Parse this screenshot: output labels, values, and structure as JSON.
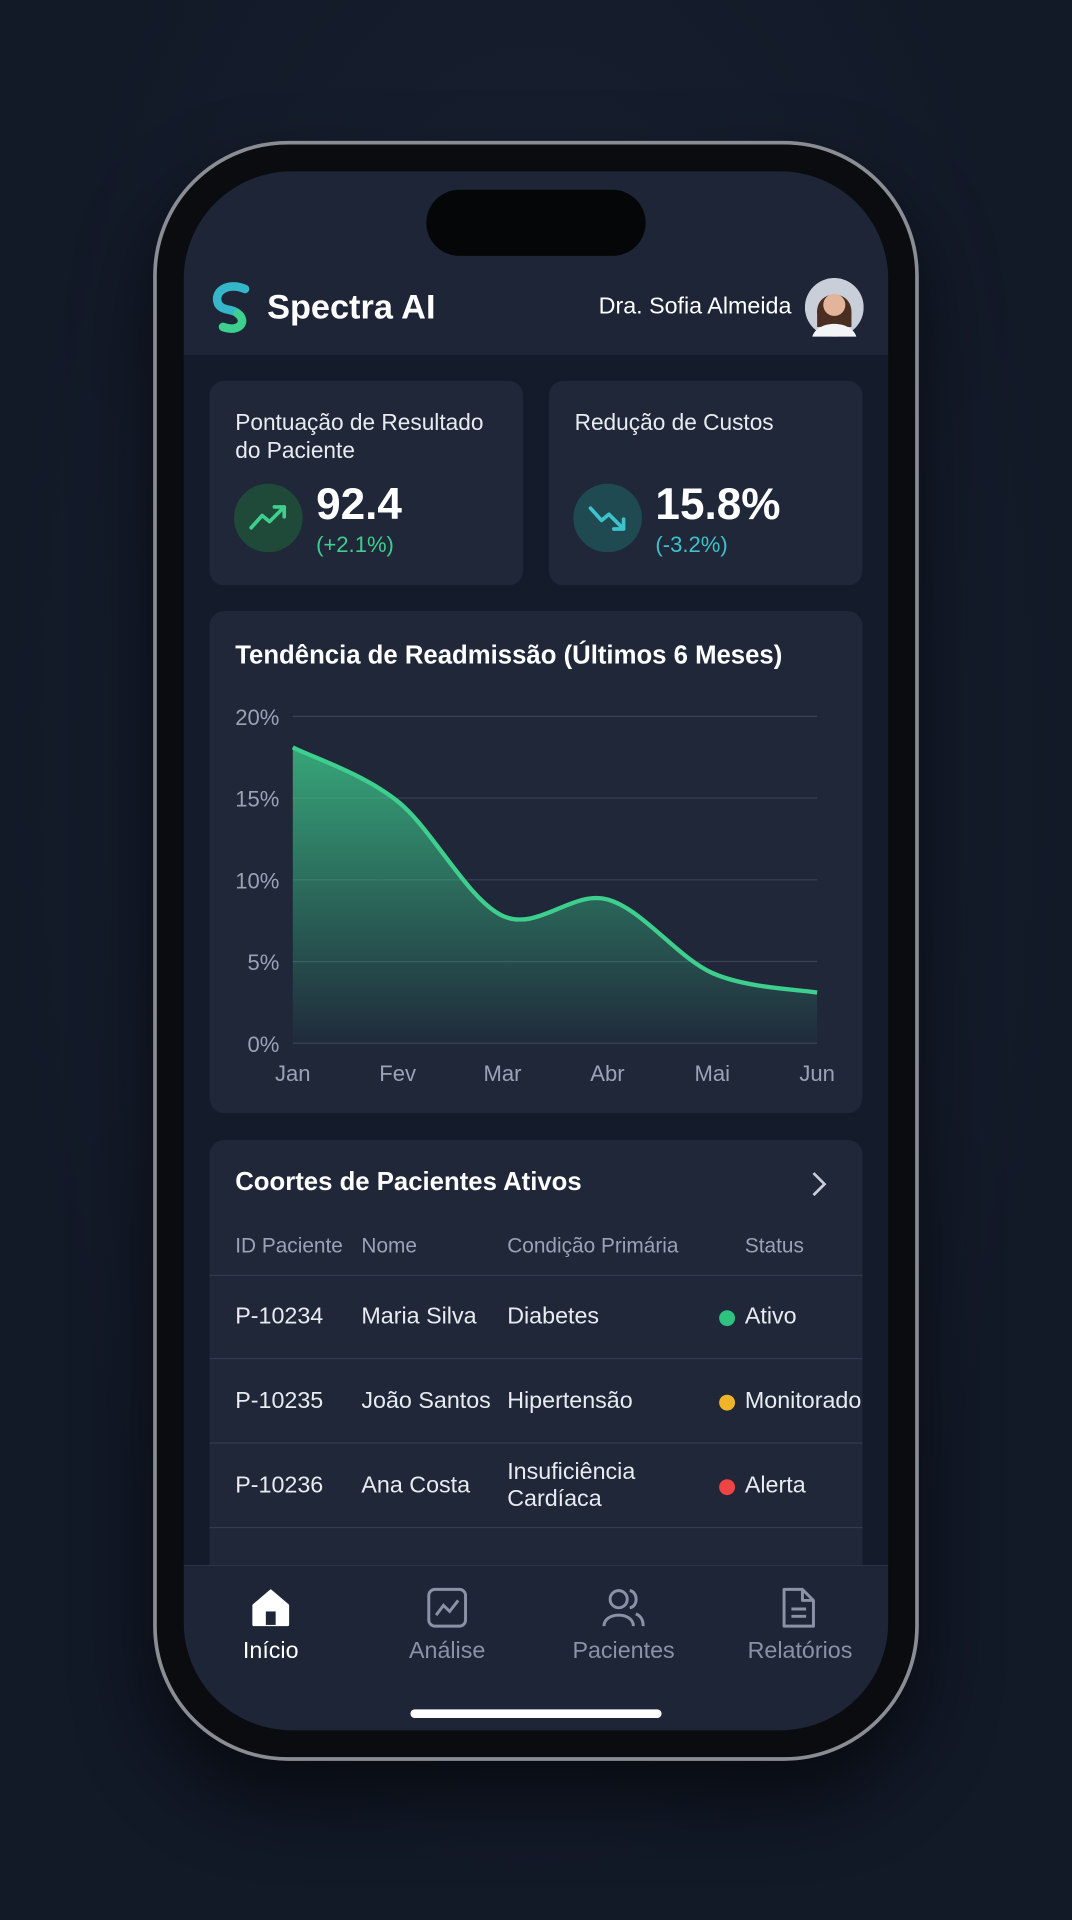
{
  "app_name": "Spectra AI",
  "user_name": "Dra. Sofia Almeida",
  "kpis": [
    {
      "title": "Pontuação de Resultado do Paciente",
      "value": "92.4",
      "change": "(+2.1%)",
      "color": "#3ecf8e"
    },
    {
      "title": "Redução de Custos",
      "value": "15.8%",
      "change": "(-3.2%)",
      "color": "#3cc3cc"
    }
  ],
  "chart_data": {
    "type": "area",
    "title": "Tendência de Readmissão (Últimos 6 Meses)",
    "categories": [
      "Jan",
      "Fev",
      "Mar",
      "Abr",
      "Mai",
      "Jun"
    ],
    "values": [
      18.1,
      14.8,
      7.8,
      8.8,
      4.3,
      3.1
    ],
    "color": "#3ecf8e",
    "ylim": [
      0,
      20
    ],
    "yticks": [
      {
        "value": 0,
        "label": "0%"
      },
      {
        "value": 5,
        "label": "5%"
      },
      {
        "value": 10,
        "label": "10%"
      },
      {
        "value": 15,
        "label": "15%"
      },
      {
        "value": 20,
        "label": "20%"
      }
    ],
    "grid": true
  },
  "table": {
    "title": "Coortes de Pacientes Ativos",
    "columns": [
      "ID Paciente",
      "Nome",
      "Condição Primária",
      "Status"
    ],
    "rows": [
      {
        "id": "P-10234",
        "name": "Maria Silva",
        "condition": "Diabetes",
        "status": "Ativo",
        "status_color": "#2ec27e"
      },
      {
        "id": "P-10235",
        "name": "João Santos",
        "condition": "Hipertensão",
        "status": "Monitorado",
        "status_color": "#f0b429"
      },
      {
        "id": "P-10236",
        "name": "Ana Costa",
        "condition": "Insuficiência Cardíaca",
        "status": "Alerta",
        "status_color": "#ef4444"
      }
    ]
  },
  "nav": [
    {
      "label": "Início",
      "active": true
    },
    {
      "label": "Análise",
      "active": false
    },
    {
      "label": "Pacientes",
      "active": false
    },
    {
      "label": "Relatórios",
      "active": false
    }
  ]
}
